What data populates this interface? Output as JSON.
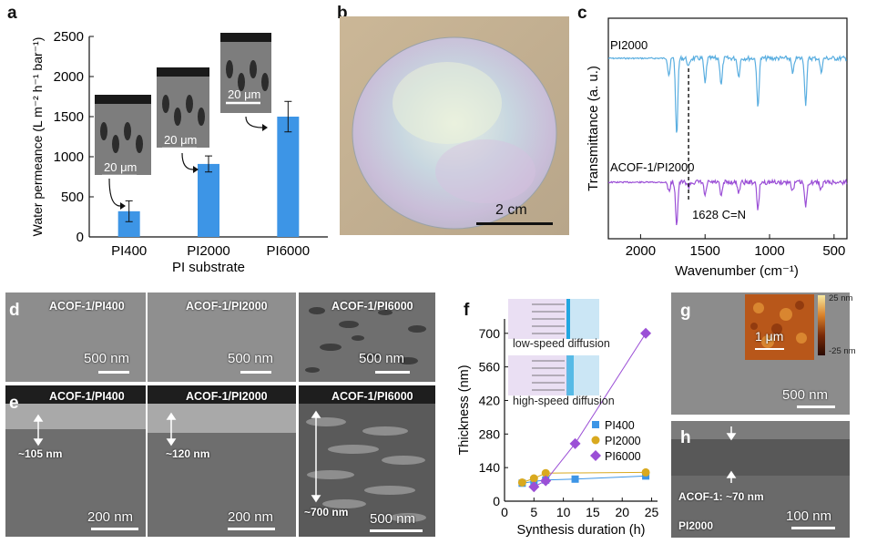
{
  "panels": {
    "a": "a",
    "b": "b",
    "c": "c",
    "d": "d",
    "e": "e",
    "f": "f",
    "g": "g",
    "h": "h"
  },
  "panel_a": {
    "ylabel": "Water permeance (L m⁻² h⁻¹ bar⁻¹)",
    "xlabel": "PI substrate",
    "inset_scale": "20 μm"
  },
  "panel_b": {
    "scale": "2 cm"
  },
  "panel_c": {
    "ylabel": "Transmittance (a. u.)",
    "xlabel": "Wavenumber (cm⁻¹)",
    "top_label": "PI2000",
    "bottom_label": "ACOF-1/PI2000",
    "annotation": "1628 C=N"
  },
  "panel_d": [
    {
      "title": "ACOF-1/PI400",
      "scale": "500 nm"
    },
    {
      "title": "ACOF-1/PI2000",
      "scale": "500 nm"
    },
    {
      "title": "ACOF-1/PI6000",
      "scale": "500 nm"
    }
  ],
  "panel_e": [
    {
      "title": "ACOF-1/PI400",
      "thickness": "~105 nm",
      "scale": "200 nm"
    },
    {
      "title": "ACOF-1/PI2000",
      "thickness": "~120 nm",
      "scale": "200 nm"
    },
    {
      "title": "ACOF-1/PI6000",
      "thickness": "~700 nm",
      "scale": "500 nm"
    }
  ],
  "panel_f": {
    "inset_top": "low-speed diffusion",
    "inset_bottom": "high-speed diffusion"
  },
  "panel_g": {
    "scale": "500 nm",
    "inset_scale": "1 μm",
    "colorbar_max": "25 nm",
    "colorbar_min": "-25 nm"
  },
  "panel_h": {
    "label": "ACOF-1: ~70 nm",
    "substrate": "PI2000",
    "scale": "100 nm"
  },
  "chart_data": [
    {
      "type": "bar",
      "categories": [
        "PI400",
        "PI2000",
        "PI6000"
      ],
      "values": [
        320,
        910,
        1500
      ],
      "errors": [
        130,
        100,
        190
      ],
      "xlabel": "PI substrate",
      "ylabel": "Water permeance (L m⁻² h⁻¹ bar⁻¹)",
      "ylim": [
        0,
        2500
      ],
      "yticks": [
        0,
        500,
        1000,
        1500,
        2000,
        2500
      ],
      "color": "#3d95e6"
    },
    {
      "type": "line",
      "xlabel": "Wavenumber (cm⁻¹)",
      "ylabel": "Transmittance (a. u.)",
      "xlim": [
        2250,
        400
      ],
      "xticks": [
        2000,
        1500,
        1000,
        500
      ],
      "series": [
        {
          "name": "PI2000",
          "color": "#5aaee0"
        },
        {
          "name": "ACOF-1/PI2000",
          "color": "#9b4fd6"
        }
      ],
      "annotation": {
        "x": 1628,
        "text": "1628 C=N"
      }
    },
    {
      "type": "scatter",
      "xlabel": "Synthesis duration (h)",
      "ylabel": "Thickness (nm)",
      "xlim": [
        0,
        26
      ],
      "ylim": [
        0,
        760
      ],
      "xticks": [
        0,
        5,
        10,
        15,
        20,
        25
      ],
      "yticks": [
        0,
        140,
        280,
        420,
        560,
        700
      ],
      "series": [
        {
          "name": "PI400",
          "color": "#3d95e6",
          "marker": "square",
          "x": [
            3,
            5,
            7,
            12,
            24
          ],
          "y": [
            75,
            82,
            88,
            92,
            105
          ]
        },
        {
          "name": "PI2000",
          "color": "#d9a91f",
          "marker": "circle",
          "x": [
            3,
            5,
            7,
            24
          ],
          "y": [
            78,
            95,
            117,
            120
          ]
        },
        {
          "name": "PI6000",
          "color": "#9b4fd6",
          "marker": "diamond",
          "x": [
            5,
            7,
            12,
            24
          ],
          "y": [
            60,
            85,
            240,
            700
          ]
        }
      ]
    }
  ]
}
